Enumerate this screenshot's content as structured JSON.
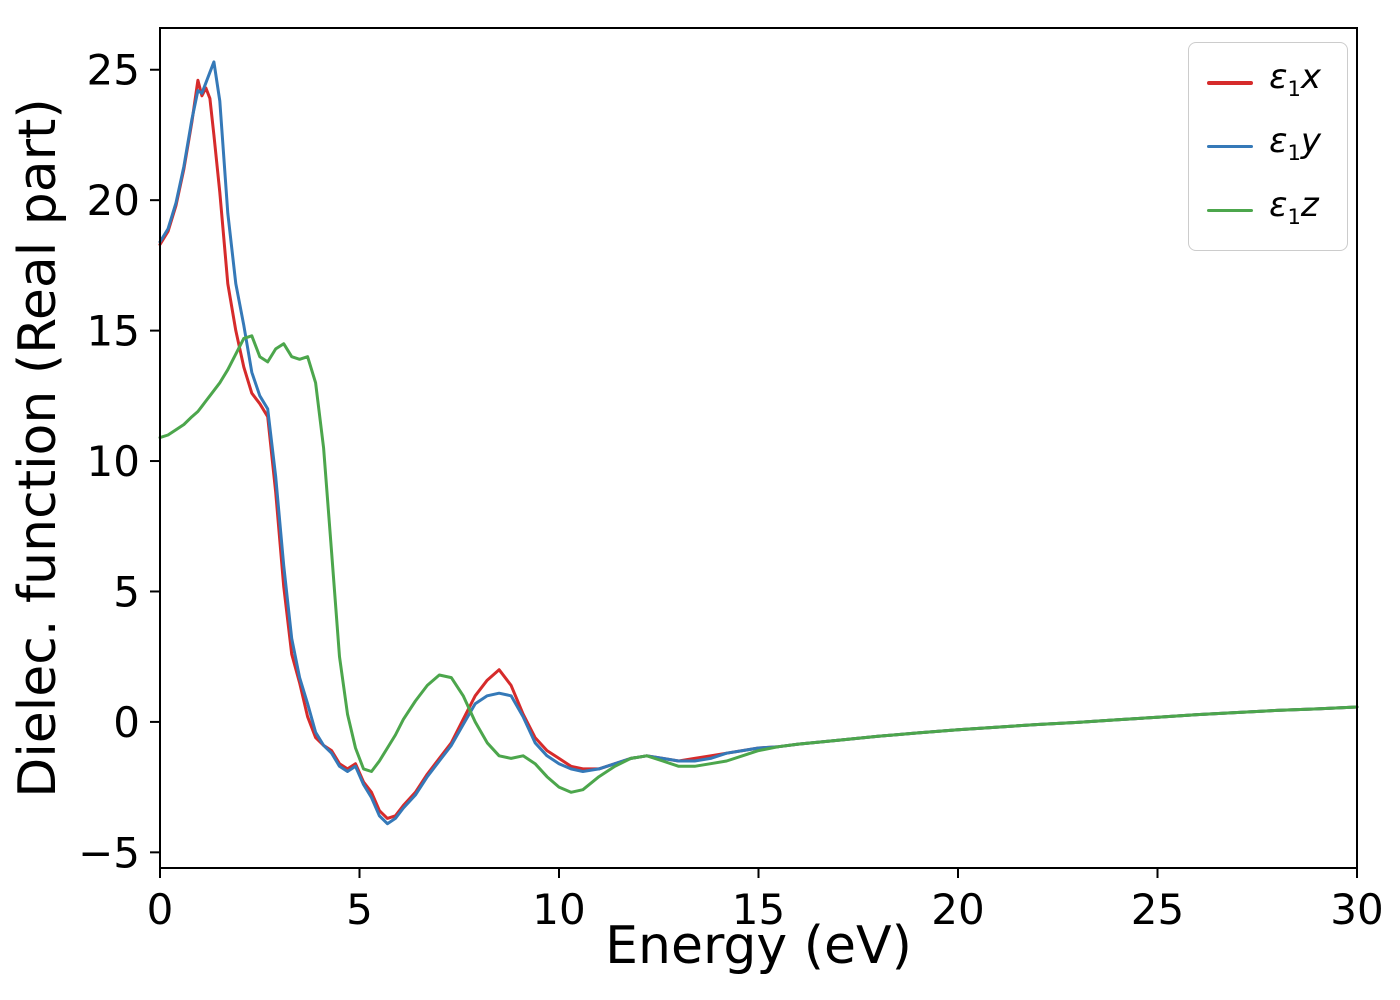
{
  "figure": {
    "background": "#ffffff",
    "xlabel": "Energy (eV)",
    "ylabel": "Dielec. function (Real part)"
  },
  "legend": {
    "position": "upper right",
    "entries": [
      {
        "symbol": "ε",
        "subscript": "1",
        "variable": "x"
      },
      {
        "symbol": "ε",
        "subscript": "1",
        "variable": "y"
      },
      {
        "symbol": "ε",
        "subscript": "1",
        "variable": "z"
      }
    ]
  },
  "chart_data": {
    "type": "line",
    "title": "",
    "xlabel": "Energy (eV)",
    "ylabel": "Dielec. function (Real part)",
    "xlim": [
      0,
      30
    ],
    "ylim": [
      -5.6,
      26.6
    ],
    "xticks": [
      0,
      5,
      10,
      15,
      20,
      25,
      30
    ],
    "yticks": [
      -5,
      0,
      5,
      10,
      15,
      20,
      25
    ],
    "grid": false,
    "legend_position": "upper right",
    "x": [
      0,
      0.2,
      0.4,
      0.6,
      0.8,
      0.95,
      1.05,
      1.15,
      1.25,
      1.35,
      1.5,
      1.7,
      1.9,
      2.1,
      2.3,
      2.5,
      2.7,
      2.9,
      3.1,
      3.3,
      3.5,
      3.7,
      3.9,
      4.1,
      4.3,
      4.5,
      4.7,
      4.9,
      5.1,
      5.3,
      5.5,
      5.7,
      5.9,
      6.1,
      6.4,
      6.7,
      7,
      7.3,
      7.6,
      7.9,
      8.2,
      8.5,
      8.8,
      9.1,
      9.4,
      9.7,
      10,
      10.3,
      10.6,
      11,
      11.4,
      11.8,
      12.2,
      12.6,
      13,
      13.4,
      13.8,
      14.2,
      14.6,
      15,
      15.5,
      16,
      17,
      18,
      19,
      20,
      21,
      22,
      23,
      24,
      25,
      26,
      27,
      28,
      29,
      30
    ],
    "series": [
      {
        "name": "ε₁x",
        "color": "#d62b2b",
        "y": [
          18.3,
          18.8,
          19.8,
          21.2,
          23.0,
          24.6,
          24.0,
          24.3,
          23.9,
          22.5,
          20.3,
          16.8,
          15.0,
          13.6,
          12.6,
          12.2,
          11.7,
          8.8,
          5.2,
          2.6,
          1.5,
          0.2,
          -0.6,
          -0.9,
          -1.1,
          -1.6,
          -1.8,
          -1.6,
          -2.3,
          -2.7,
          -3.4,
          -3.7,
          -3.6,
          -3.2,
          -2.7,
          -2.0,
          -1.4,
          -0.8,
          0.1,
          1.0,
          1.6,
          2.0,
          1.4,
          0.3,
          -0.6,
          -1.1,
          -1.4,
          -1.7,
          -1.8,
          -1.8,
          -1.6,
          -1.4,
          -1.3,
          -1.4,
          -1.5,
          -1.4,
          -1.3,
          -1.2,
          -1.1,
          -1.0,
          -0.95,
          -0.85,
          -0.7,
          -0.55,
          -0.42,
          -0.3,
          -0.2,
          -0.1,
          -0.02,
          0.08,
          0.18,
          0.28,
          0.36,
          0.44,
          0.5,
          0.57
        ]
      },
      {
        "name": "ε₁y",
        "color": "#3579b8",
        "y": [
          18.4,
          18.9,
          19.9,
          21.3,
          23.1,
          24.2,
          24.1,
          24.5,
          24.9,
          25.3,
          23.8,
          19.5,
          16.8,
          15.2,
          13.4,
          12.5,
          12.0,
          9.4,
          6.0,
          3.2,
          1.7,
          0.7,
          -0.4,
          -0.9,
          -1.2,
          -1.7,
          -1.9,
          -1.7,
          -2.4,
          -2.9,
          -3.6,
          -3.9,
          -3.7,
          -3.3,
          -2.8,
          -2.1,
          -1.5,
          -0.9,
          -0.1,
          0.7,
          1.0,
          1.1,
          1.0,
          0.2,
          -0.8,
          -1.3,
          -1.6,
          -1.8,
          -1.9,
          -1.8,
          -1.6,
          -1.4,
          -1.3,
          -1.4,
          -1.5,
          -1.5,
          -1.4,
          -1.2,
          -1.1,
          -1.0,
          -0.95,
          -0.85,
          -0.7,
          -0.55,
          -0.42,
          -0.3,
          -0.2,
          -0.1,
          -0.02,
          0.08,
          0.18,
          0.28,
          0.36,
          0.44,
          0.5,
          0.57
        ]
      },
      {
        "name": "ε₁z",
        "color": "#4ca64c",
        "y": [
          10.9,
          11.0,
          11.2,
          11.4,
          11.7,
          11.9,
          12.1,
          12.3,
          12.5,
          12.7,
          13.0,
          13.5,
          14.1,
          14.7,
          14.8,
          14.0,
          13.8,
          14.3,
          14.5,
          14.0,
          13.9,
          14.0,
          13.0,
          10.5,
          6.5,
          2.5,
          0.3,
          -1.0,
          -1.8,
          -1.9,
          -1.5,
          -1.0,
          -0.5,
          0.1,
          0.8,
          1.4,
          1.8,
          1.7,
          1.0,
          0.0,
          -0.8,
          -1.3,
          -1.4,
          -1.3,
          -1.6,
          -2.1,
          -2.5,
          -2.7,
          -2.6,
          -2.1,
          -1.7,
          -1.4,
          -1.3,
          -1.5,
          -1.7,
          -1.7,
          -1.6,
          -1.5,
          -1.3,
          -1.1,
          -0.95,
          -0.85,
          -0.7,
          -0.55,
          -0.42,
          -0.3,
          -0.2,
          -0.1,
          -0.02,
          0.08,
          0.18,
          0.28,
          0.36,
          0.44,
          0.5,
          0.57
        ]
      }
    ]
  }
}
